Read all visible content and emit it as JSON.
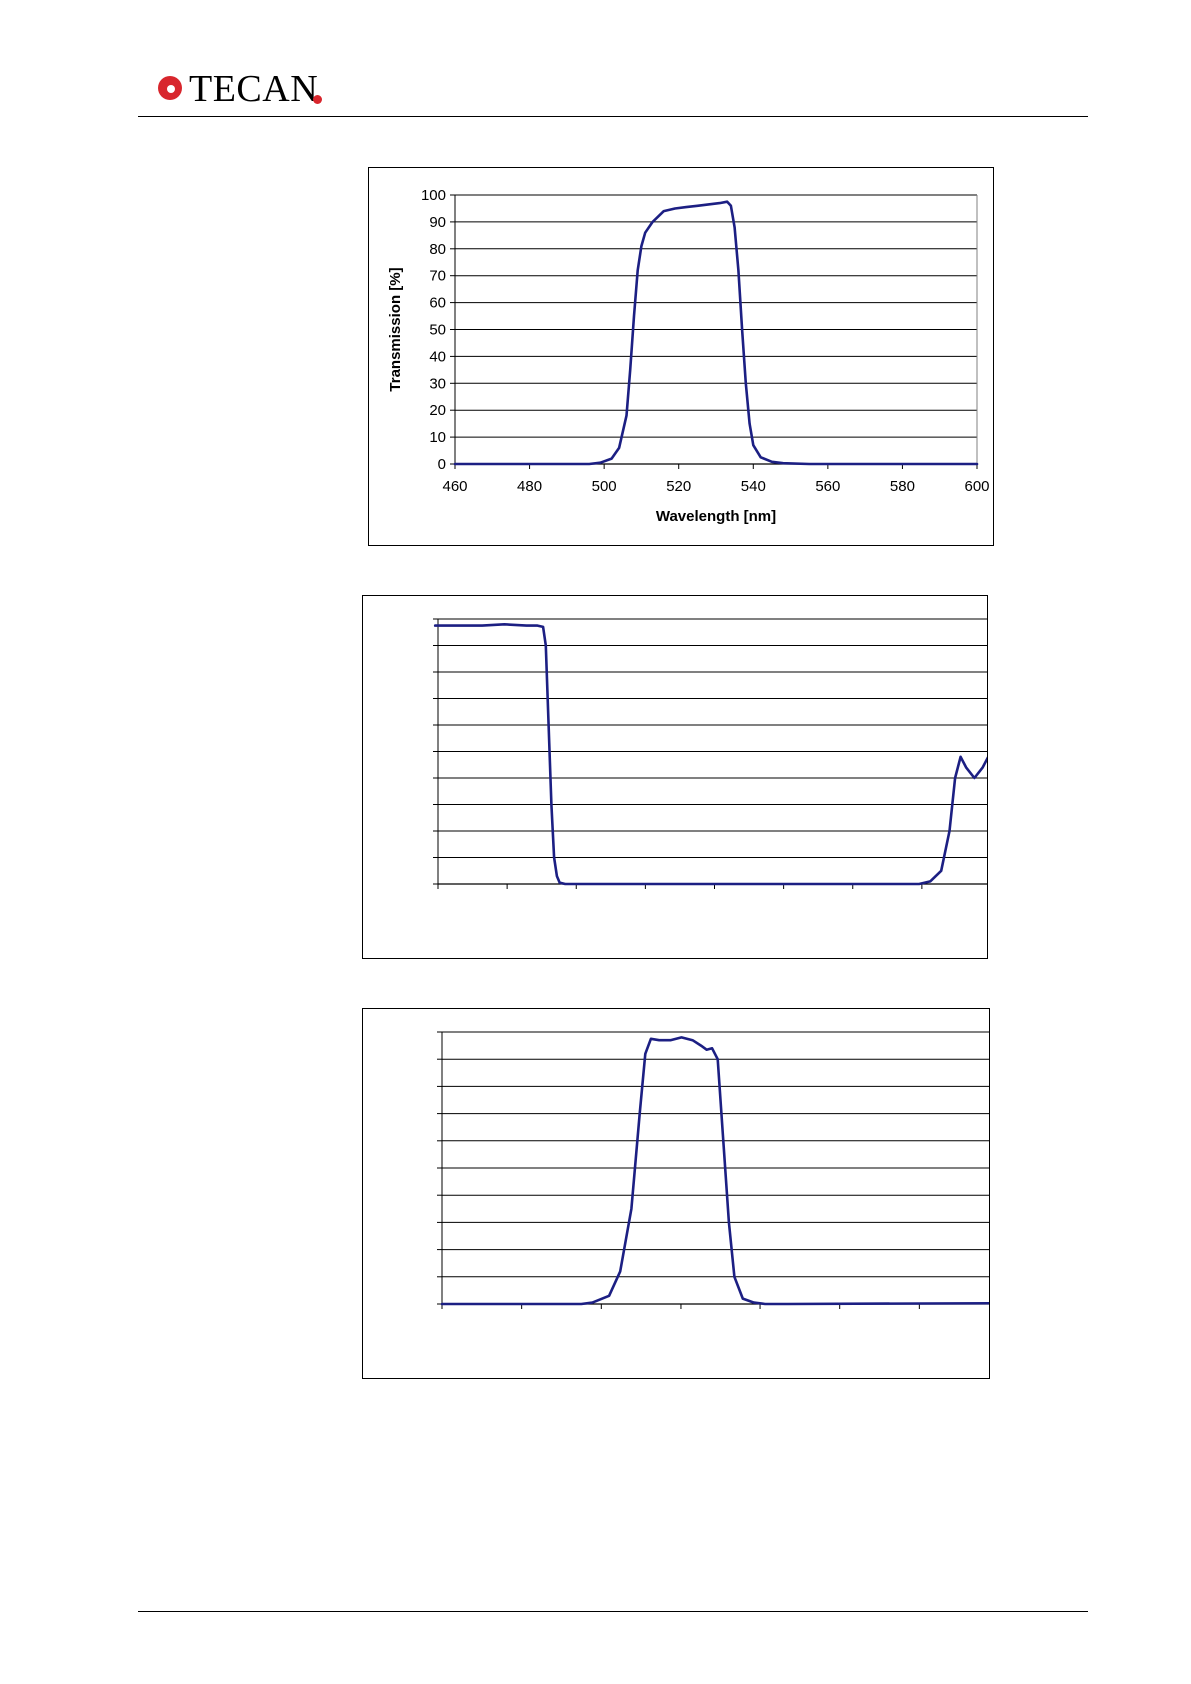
{
  "header": {
    "logo_text": "TECAN",
    "logo_colors": {
      "accent": "#d8262d"
    }
  },
  "colors": {
    "curve": "#1c1f83",
    "grid": "#000000"
  },
  "chart_data": [
    {
      "type": "line",
      "title": "",
      "xlabel": "Wavelength [nm]",
      "ylabel": "Transmission [%]",
      "xlim": [
        460,
        600
      ],
      "ylim": [
        0,
        100
      ],
      "xticks": [
        460,
        480,
        500,
        520,
        540,
        560,
        580,
        600
      ],
      "yticks": [
        0,
        10,
        20,
        30,
        40,
        50,
        60,
        70,
        80,
        90,
        100
      ],
      "show_labels": true,
      "grid": "horizontal",
      "series": [
        {
          "x": [
            460,
            496,
            499,
            502,
            504,
            506,
            507,
            508,
            509,
            510,
            511,
            513,
            516,
            519,
            522,
            525,
            528,
            531,
            533,
            534,
            535,
            536,
            537,
            538,
            539,
            540,
            542,
            545,
            548,
            555,
            600
          ],
          "y": [
            0,
            0,
            0.5,
            2,
            6,
            18,
            35,
            55,
            72,
            81,
            86,
            90,
            94,
            95,
            95.5,
            96,
            96.5,
            97,
            97.5,
            96,
            88,
            72,
            50,
            30,
            15,
            7,
            2.5,
            0.8,
            0.3,
            0,
            0
          ]
        }
      ]
    },
    {
      "type": "line",
      "xlim": [
        0,
        100
      ],
      "ylim": [
        0,
        100
      ],
      "grid": "horizontal",
      "show_labels": false,
      "xticks": [
        0,
        12.5,
        25,
        37.5,
        50,
        62.5,
        75,
        87.5,
        100
      ],
      "yticks": [
        0,
        10,
        20,
        30,
        40,
        50,
        60,
        70,
        80,
        90,
        100
      ],
      "series": [
        {
          "x": [
            -0.5,
            4,
            8,
            12,
            16,
            18,
            19,
            19.5,
            20,
            20.5,
            21,
            21.5,
            22,
            23,
            25,
            30,
            60,
            87,
            89,
            91,
            92.5,
            93.5,
            94.5,
            95.5,
            97,
            98.5,
            100,
            101
          ],
          "y": [
            97.5,
            97.5,
            97.5,
            98,
            97.5,
            97.5,
            97,
            90,
            60,
            30,
            10,
            3,
            0.5,
            0,
            0,
            0,
            0,
            0,
            1,
            5,
            20,
            40,
            48,
            44,
            40,
            44,
            50,
            55
          ]
        }
      ]
    },
    {
      "type": "line",
      "xlim": [
        0,
        100
      ],
      "ylim": [
        0,
        100
      ],
      "grid": "horizontal",
      "show_labels": false,
      "xticks": [
        0,
        14.3,
        28.6,
        42.9,
        57.1,
        71.4,
        85.7,
        100
      ],
      "yticks": [
        0,
        10,
        20,
        30,
        40,
        50,
        60,
        70,
        80,
        90,
        100
      ],
      "series": [
        {
          "x": [
            0,
            25,
            27,
            30,
            32,
            34,
            35.5,
            36.5,
            37.5,
            39,
            41,
            43,
            45,
            46.5,
            47.5,
            48.5,
            49.5,
            50.5,
            51.5,
            52.5,
            54,
            56,
            58,
            62,
            100
          ],
          "y": [
            0,
            0,
            0.5,
            3,
            12,
            35,
            70,
            92,
            97.5,
            97,
            97,
            98,
            97,
            95,
            93.5,
            94,
            90,
            60,
            30,
            10,
            2,
            0.5,
            0,
            0,
            0.3
          ]
        }
      ]
    }
  ]
}
